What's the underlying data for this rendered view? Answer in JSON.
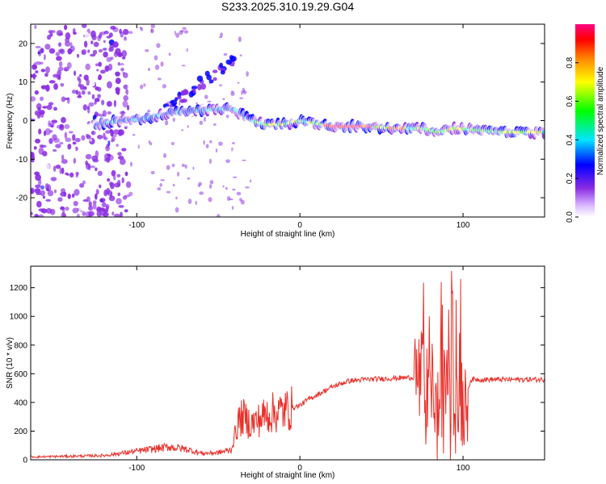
{
  "title": "S233.2025.310.19.29.G04",
  "chart_data": [
    {
      "type": "heatmap",
      "title": "S233.2025.310.19.29.G04",
      "xlabel": "Height of straight line (km)",
      "ylabel": "Frequency (Hz)",
      "xlim": [
        -165,
        150
      ],
      "ylim": [
        -25,
        25
      ],
      "xticks": [
        -100,
        0,
        100
      ],
      "yticks": [
        -20,
        -10,
        0,
        10,
        20
      ],
      "ridge": {
        "x": [
          -125,
          -110,
          -95,
          -80,
          -65,
          -50,
          -40,
          -30,
          -20,
          -10,
          0,
          20,
          40,
          60,
          75,
          85,
          95,
          110,
          125,
          150
        ],
        "freq": [
          -1,
          0,
          0.5,
          2,
          2.5,
          3,
          3,
          0,
          -1,
          -1,
          0,
          -1.5,
          -1.5,
          -2,
          -2,
          -3,
          -2,
          -2.5,
          -3,
          -3
        ]
      },
      "colorbar": {
        "label": "Normalized spectral amplitude",
        "ticks": [
          0.0,
          0.2,
          0.4,
          0.6,
          0.8
        ],
        "range": [
          0,
          1
        ],
        "colormap": [
          "#ffffff",
          "#8a2be2",
          "#0000ff",
          "#00e5ff",
          "#00ff00",
          "#ffff00",
          "#ff8800",
          "#ff0000",
          "#ff0080"
        ]
      }
    },
    {
      "type": "line",
      "xlabel": "Height of straight line (km)",
      "ylabel": "SNR (10 * v/v)",
      "xlim": [
        -165,
        150
      ],
      "ylim": [
        0,
        1350
      ],
      "xticks": [
        -100,
        0,
        100
      ],
      "yticks": [
        0,
        200,
        400,
        600,
        800,
        1000,
        1200
      ],
      "series": [
        {
          "name": "SNR",
          "color": "#e8302a",
          "x": [
            -165,
            -140,
            -120,
            -100,
            -90,
            -80,
            -70,
            -60,
            -50,
            -42,
            -38,
            -35,
            -30,
            -25,
            -20,
            -15,
            -10,
            -5,
            0,
            5,
            10,
            15,
            20,
            25,
            30,
            40,
            50,
            60,
            70,
            75,
            80,
            82,
            84,
            86,
            88,
            90,
            92,
            94,
            96,
            98,
            100,
            105,
            120,
            150
          ],
          "values": [
            20,
            25,
            30,
            60,
            75,
            90,
            75,
            45,
            50,
            70,
            260,
            300,
            250,
            280,
            320,
            330,
            340,
            360,
            380,
            420,
            450,
            480,
            510,
            530,
            550,
            560,
            565,
            570,
            575,
            560,
            300,
            600,
            200,
            500,
            350,
            700,
            250,
            600,
            300,
            550,
            400,
            560,
            560,
            560
          ]
        }
      ]
    }
  ]
}
